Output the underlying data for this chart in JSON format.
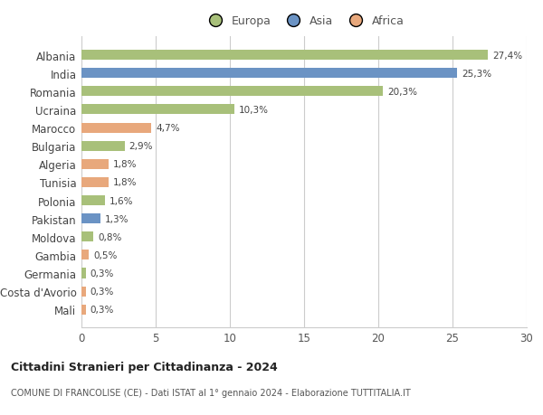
{
  "countries": [
    "Albania",
    "India",
    "Romania",
    "Ucraina",
    "Marocco",
    "Bulgaria",
    "Algeria",
    "Tunisia",
    "Polonia",
    "Pakistan",
    "Moldova",
    "Gambia",
    "Germania",
    "Costa d'Avorio",
    "Mali"
  ],
  "values": [
    27.4,
    25.3,
    20.3,
    10.3,
    4.7,
    2.9,
    1.8,
    1.8,
    1.6,
    1.3,
    0.8,
    0.5,
    0.3,
    0.3,
    0.3
  ],
  "labels": [
    "27,4%",
    "25,3%",
    "20,3%",
    "10,3%",
    "4,7%",
    "2,9%",
    "1,8%",
    "1,8%",
    "1,6%",
    "1,3%",
    "0,8%",
    "0,5%",
    "0,3%",
    "0,3%",
    "0,3%"
  ],
  "continents": [
    "Europa",
    "Asia",
    "Europa",
    "Europa",
    "Africa",
    "Europa",
    "Africa",
    "Africa",
    "Europa",
    "Asia",
    "Europa",
    "Africa",
    "Europa",
    "Africa",
    "Africa"
  ],
  "colors": {
    "Europa": "#a8c07a",
    "Asia": "#6b93c4",
    "Africa": "#e8a87c"
  },
  "legend_order": [
    "Europa",
    "Asia",
    "Africa"
  ],
  "title": "Cittadini Stranieri per Cittadinanza - 2024",
  "subtitle": "COMUNE DI FRANCOLISE (CE) - Dati ISTAT al 1° gennaio 2024 - Elaborazione TUTTITALIA.IT",
  "xlim": [
    0,
    30
  ],
  "xticks": [
    0,
    5,
    10,
    15,
    20,
    25,
    30
  ],
  "bg_color": "#ffffff",
  "grid_color": "#cccccc",
  "bar_height": 0.55
}
